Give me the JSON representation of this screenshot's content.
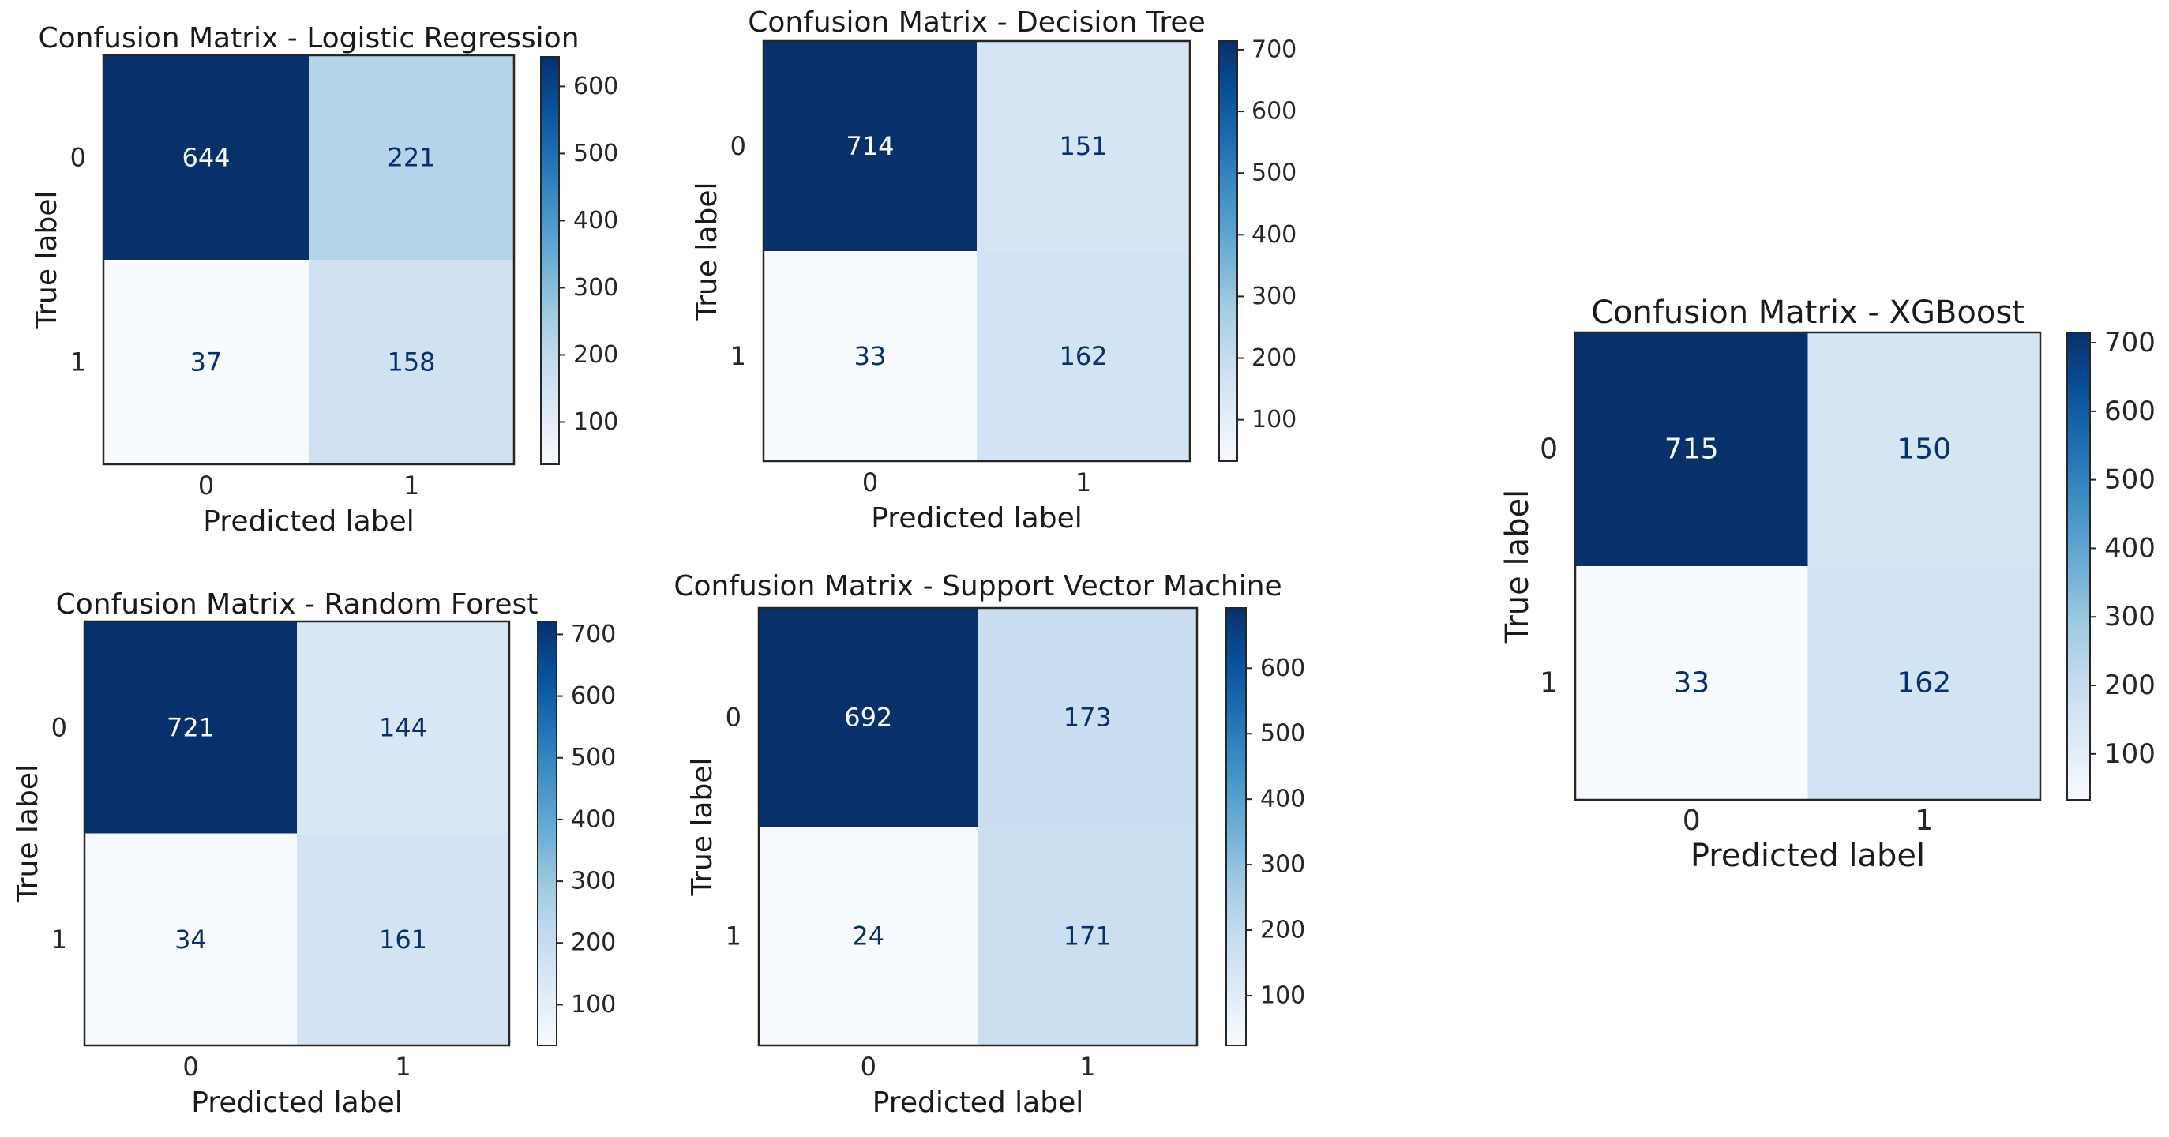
{
  "chart_data": [
    {
      "type": "heatmap",
      "title": "Confusion Matrix - Logistic Regression",
      "xlabel": "Predicted label",
      "ylabel": "True label",
      "x_ticks": [
        "0",
        "1"
      ],
      "y_ticks": [
        "0",
        "1"
      ],
      "matrix": [
        [
          644,
          221
        ],
        [
          37,
          158
        ]
      ],
      "colormap": "Blues",
      "colorbar": {
        "min": 37,
        "max": 644,
        "ticks": [
          100,
          200,
          300,
          400,
          500,
          600
        ]
      }
    },
    {
      "type": "heatmap",
      "title": "Confusion Matrix - Decision Tree",
      "xlabel": "Predicted label",
      "ylabel": "True label",
      "x_ticks": [
        "0",
        "1"
      ],
      "y_ticks": [
        "0",
        "1"
      ],
      "matrix": [
        [
          714,
          151
        ],
        [
          33,
          162
        ]
      ],
      "colormap": "Blues",
      "colorbar": {
        "min": 33,
        "max": 714,
        "ticks": [
          100,
          200,
          300,
          400,
          500,
          600,
          700
        ]
      }
    },
    {
      "type": "heatmap",
      "title": "Confusion Matrix - Random Forest",
      "xlabel": "Predicted label",
      "ylabel": "True label",
      "x_ticks": [
        "0",
        "1"
      ],
      "y_ticks": [
        "0",
        "1"
      ],
      "matrix": [
        [
          721,
          144
        ],
        [
          34,
          161
        ]
      ],
      "colormap": "Blues",
      "colorbar": {
        "min": 34,
        "max": 721,
        "ticks": [
          100,
          200,
          300,
          400,
          500,
          600,
          700
        ]
      }
    },
    {
      "type": "heatmap",
      "title": "Confusion Matrix - Support Vector Machine",
      "xlabel": "Predicted label",
      "ylabel": "True label",
      "x_ticks": [
        "0",
        "1"
      ],
      "y_ticks": [
        "0",
        "1"
      ],
      "matrix": [
        [
          692,
          173
        ],
        [
          24,
          171
        ]
      ],
      "colormap": "Blues",
      "colorbar": {
        "min": 24,
        "max": 692,
        "ticks": [
          100,
          200,
          300,
          400,
          500,
          600
        ]
      }
    },
    {
      "type": "heatmap",
      "title": "Confusion Matrix - XGBoost",
      "xlabel": "Predicted label",
      "ylabel": "True label",
      "x_ticks": [
        "0",
        "1"
      ],
      "y_ticks": [
        "0",
        "1"
      ],
      "matrix": [
        [
          715,
          150
        ],
        [
          33,
          162
        ]
      ],
      "colormap": "Blues",
      "colorbar": {
        "min": 33,
        "max": 715,
        "ticks": [
          100,
          200,
          300,
          400,
          500,
          600,
          700
        ]
      }
    }
  ]
}
